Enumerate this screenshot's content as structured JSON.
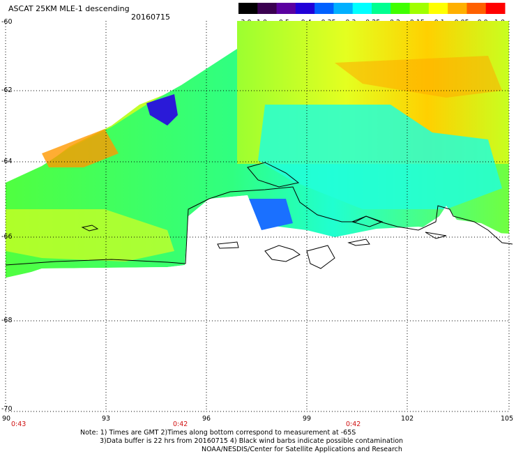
{
  "header": {
    "title": "ASCAT 25KM MLE-1 descending",
    "date": "20160715"
  },
  "colorbar": {
    "labels": [
      "-3.0",
      "-1.0",
      "-0.5",
      "-0.4",
      "-0.35",
      "-0.3",
      "-0.25",
      "-0.2",
      "-0.15",
      "-0.1",
      "-0.05",
      "0.0",
      "1.0"
    ],
    "colors": [
      "#000000",
      "#3a0050",
      "#5a00a0",
      "#2000d8",
      "#0060ff",
      "#00b0ff",
      "#00ffff",
      "#00ff90",
      "#40ff00",
      "#a0ff00",
      "#ffff00",
      "#ffb000",
      "#ff6000",
      "#ff0000"
    ]
  },
  "axes": {
    "lat_labels": [
      "-60",
      "-62",
      "-64",
      "-66",
      "-68",
      "-70"
    ],
    "lon_labels": [
      "90",
      "93",
      "96",
      "99",
      "102",
      "105"
    ],
    "time_labels": [
      "0:43",
      "0:42",
      "0:42"
    ]
  },
  "notes": {
    "line1": "Note: 1) Times are GMT 2)Times along bottom correspond to measurement at -65S",
    "line2": "3)Data buffer is 22 hrs from 20160715 4) Black wind barbs indicate possible contamination",
    "line3": "NOAA/NESDIS/Center for Satellite Applications and Research"
  }
}
